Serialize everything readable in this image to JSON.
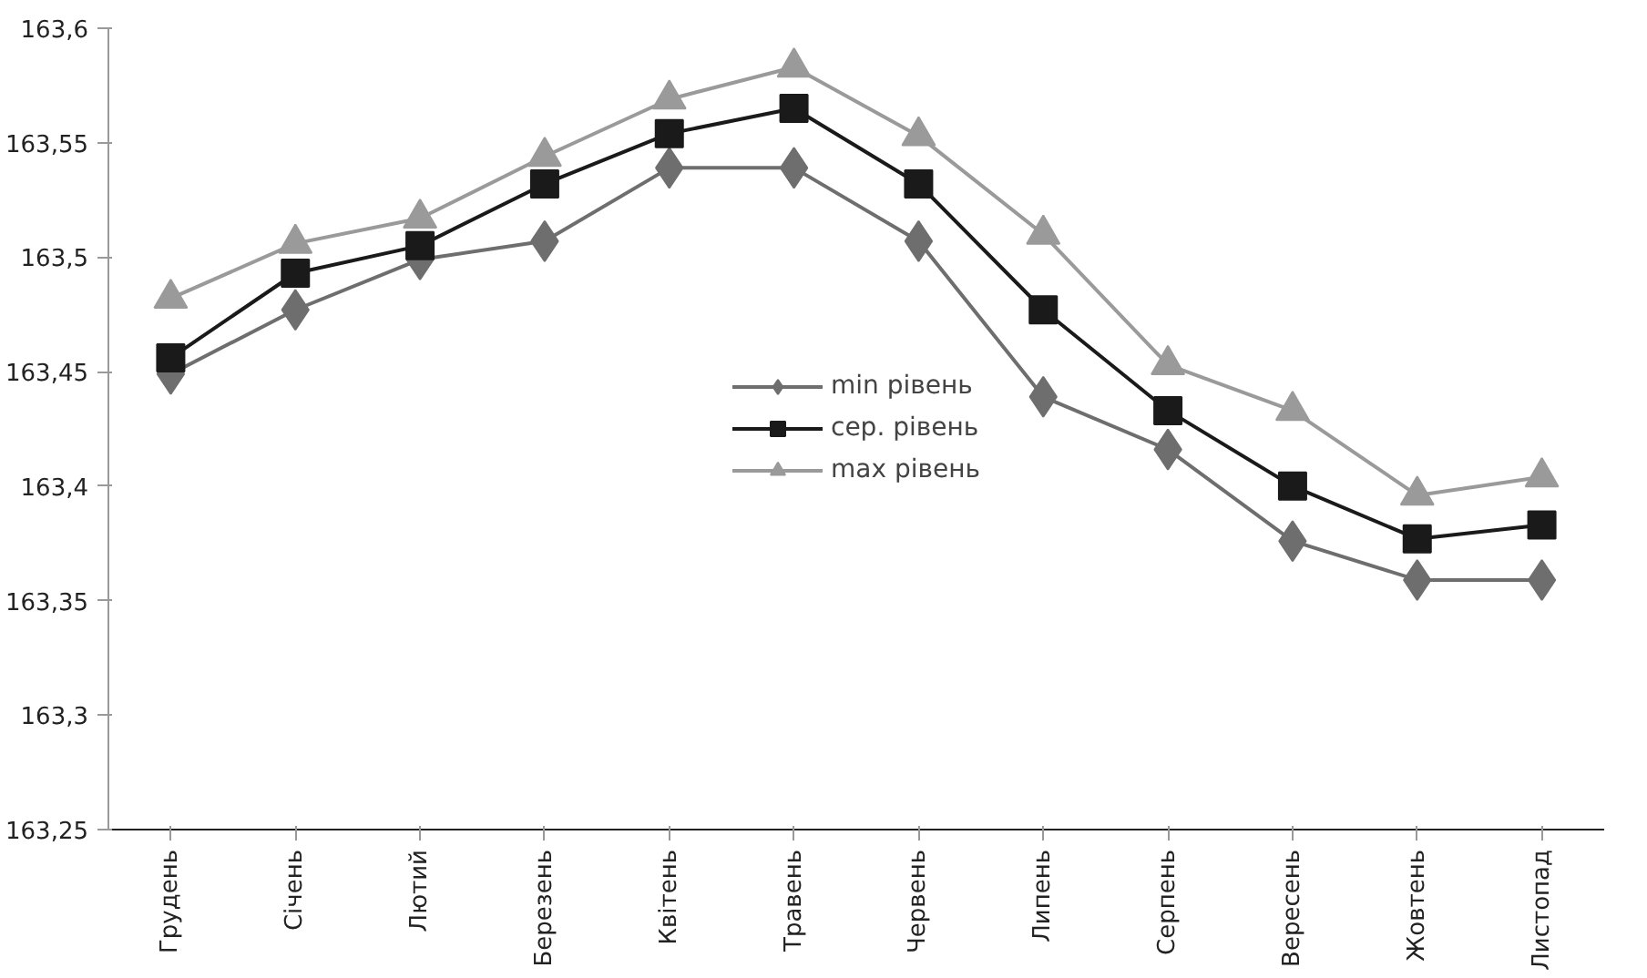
{
  "chart_data": {
    "type": "line",
    "categories": [
      "Грудень",
      "Січень",
      "Лютий",
      "Березень",
      "Квітень",
      "Травень",
      "Червень",
      "Липень",
      "Серпень",
      "Вересень",
      "Жовтень",
      "Листопад"
    ],
    "series": [
      {
        "name": "min рівень",
        "color": "#6e6e6e",
        "marker": "diamond",
        "values": [
          163.449,
          163.477,
          163.499,
          163.507,
          163.539,
          163.539,
          163.507,
          163.439,
          163.416,
          163.376,
          163.359,
          163.359
        ]
      },
      {
        "name": "сер. рівень",
        "color": "#1a1a1a",
        "marker": "square",
        "values": [
          163.456,
          163.493,
          163.505,
          163.532,
          163.554,
          163.565,
          163.532,
          163.477,
          163.433,
          163.4,
          163.377,
          163.383
        ]
      },
      {
        "name": "max рівень",
        "color": "#9a9a9a",
        "marker": "triangle",
        "values": [
          163.482,
          163.506,
          163.517,
          163.544,
          163.569,
          163.583,
          163.553,
          163.51,
          163.453,
          163.433,
          163.396,
          163.404
        ]
      }
    ],
    "ylim": [
      163.25,
      163.6
    ],
    "yticks": [
      {
        "value": 163.25,
        "label": "163,25"
      },
      {
        "value": 163.3,
        "label": "163,3"
      },
      {
        "value": 163.35,
        "label": "163,35"
      },
      {
        "value": 163.4,
        "label": "163,4"
      },
      {
        "value": 163.45,
        "label": "163,45"
      },
      {
        "value": 163.5,
        "label": "163,5"
      },
      {
        "value": 163.55,
        "label": "163,55"
      },
      {
        "value": 163.6,
        "label": "163,6"
      }
    ],
    "grid": false,
    "legend": "center",
    "line_style": "solid"
  }
}
